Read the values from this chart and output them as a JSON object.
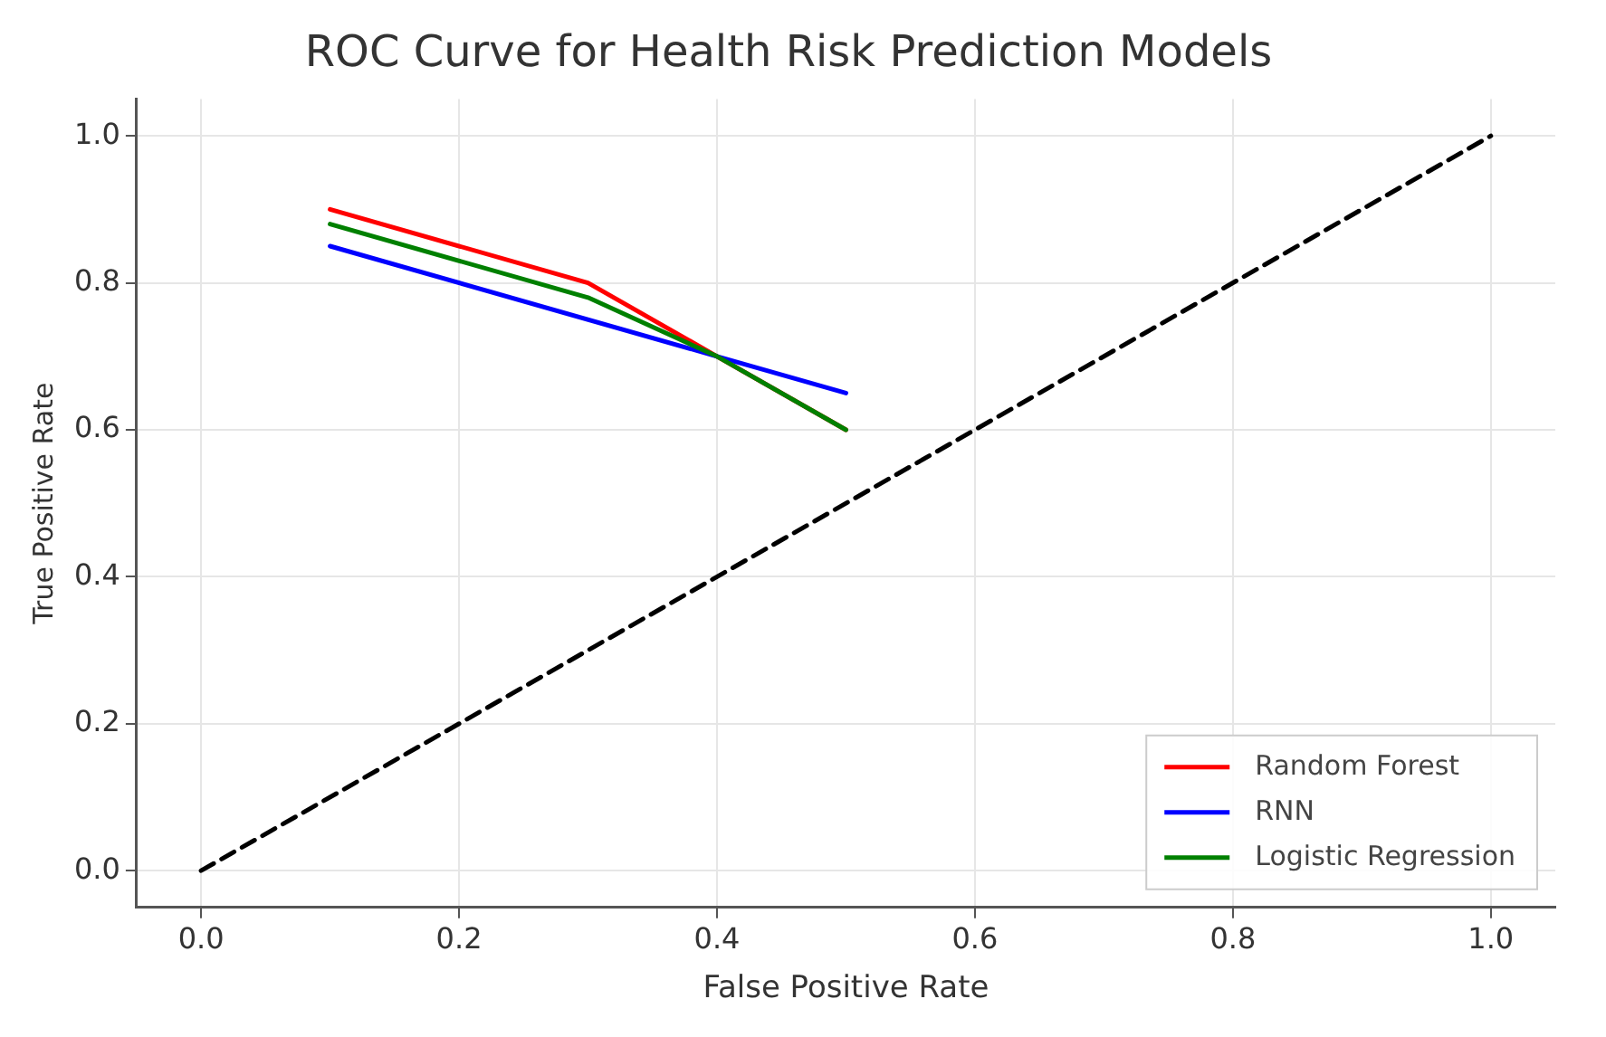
{
  "chart_data": {
    "type": "line",
    "title": "ROC Curve for Health Risk Prediction Models",
    "xlabel": "False Positive Rate",
    "ylabel": "True Positive Rate",
    "xlim": [
      -0.05,
      1.05
    ],
    "ylim": [
      -0.05,
      1.05
    ],
    "xticks": [
      {
        "value": 0,
        "label": "0.0"
      },
      0.2,
      0.4,
      0.6,
      0.8,
      {
        "value": 1,
        "label": "1.0"
      }
    ],
    "yticks": [
      {
        "value": 0,
        "label": "0.0"
      },
      0.2,
      0.4,
      0.6,
      0.8,
      {
        "value": 1,
        "label": "1.0"
      }
    ],
    "grid": true,
    "legend": "bottom right",
    "marker": "none",
    "series": [
      {
        "name": "Random Forest",
        "color": "#ff0000",
        "x": [
          0.1,
          0.3,
          0.4,
          0.5
        ],
        "values": [
          0.9,
          0.8,
          0.7,
          0.6
        ]
      },
      {
        "name": "RNN",
        "color": "#0000ff",
        "x": [
          0.1,
          0.4,
          0.5
        ],
        "values": [
          0.85,
          0.7,
          0.65
        ]
      },
      {
        "name": "Logistic Regression",
        "color": "#008000",
        "x": [
          0.1,
          0.3,
          0.4,
          0.5
        ],
        "values": [
          0.88,
          0.78,
          0.7,
          0.6
        ]
      },
      {
        "color": "#000000",
        "x": [
          0,
          1
        ],
        "values": [
          0,
          1
        ],
        "line_style": "dashed"
      }
    ]
  }
}
